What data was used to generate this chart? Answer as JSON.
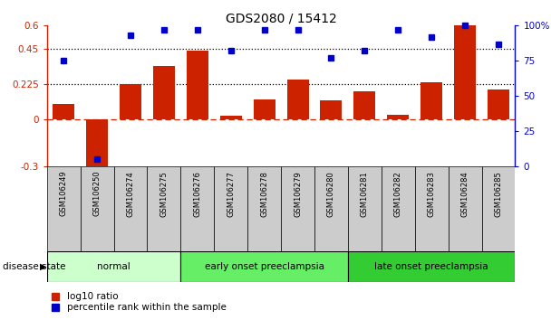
{
  "title": "GDS2080 / 15412",
  "samples": [
    "GSM106249",
    "GSM106250",
    "GSM106274",
    "GSM106275",
    "GSM106276",
    "GSM106277",
    "GSM106278",
    "GSM106279",
    "GSM106280",
    "GSM106281",
    "GSM106282",
    "GSM106283",
    "GSM106284",
    "GSM106285"
  ],
  "log10_ratio": [
    0.1,
    -0.32,
    0.225,
    0.34,
    0.44,
    0.025,
    0.13,
    0.255,
    0.12,
    0.18,
    0.03,
    0.235,
    0.6,
    0.19
  ],
  "percentile_rank": [
    75,
    5,
    93,
    97,
    97,
    82,
    97,
    97,
    77,
    82,
    97,
    92,
    100,
    87
  ],
  "ylim_left": [
    -0.3,
    0.6
  ],
  "ylim_right": [
    0,
    100
  ],
  "yticks_left": [
    -0.3,
    0,
    0.225,
    0.45,
    0.6
  ],
  "yticks_right": [
    0,
    25,
    50,
    75,
    100
  ],
  "ytick_labels_left": [
    "-0.3",
    "0",
    "0.225",
    "0.45",
    "0.6"
  ],
  "ytick_labels_right": [
    "0",
    "25",
    "50",
    "75",
    "100%"
  ],
  "hlines": [
    0.225,
    0.45
  ],
  "bar_color": "#cc2200",
  "dot_color": "#0000cc",
  "zero_line_color": "#cc2200",
  "bg_color": "#cccccc",
  "groups": [
    {
      "label": "normal",
      "start": 0,
      "end": 4,
      "color": "#ccffcc"
    },
    {
      "label": "early onset preeclampsia",
      "start": 4,
      "end": 9,
      "color": "#66ee66"
    },
    {
      "label": "late onset preeclampsia",
      "start": 9,
      "end": 14,
      "color": "#33cc33"
    }
  ],
  "disease_state_label": "disease state",
  "legend_items": [
    {
      "label": "log10 ratio",
      "color": "#cc2200"
    },
    {
      "label": "percentile rank within the sample",
      "color": "#0000cc"
    }
  ]
}
